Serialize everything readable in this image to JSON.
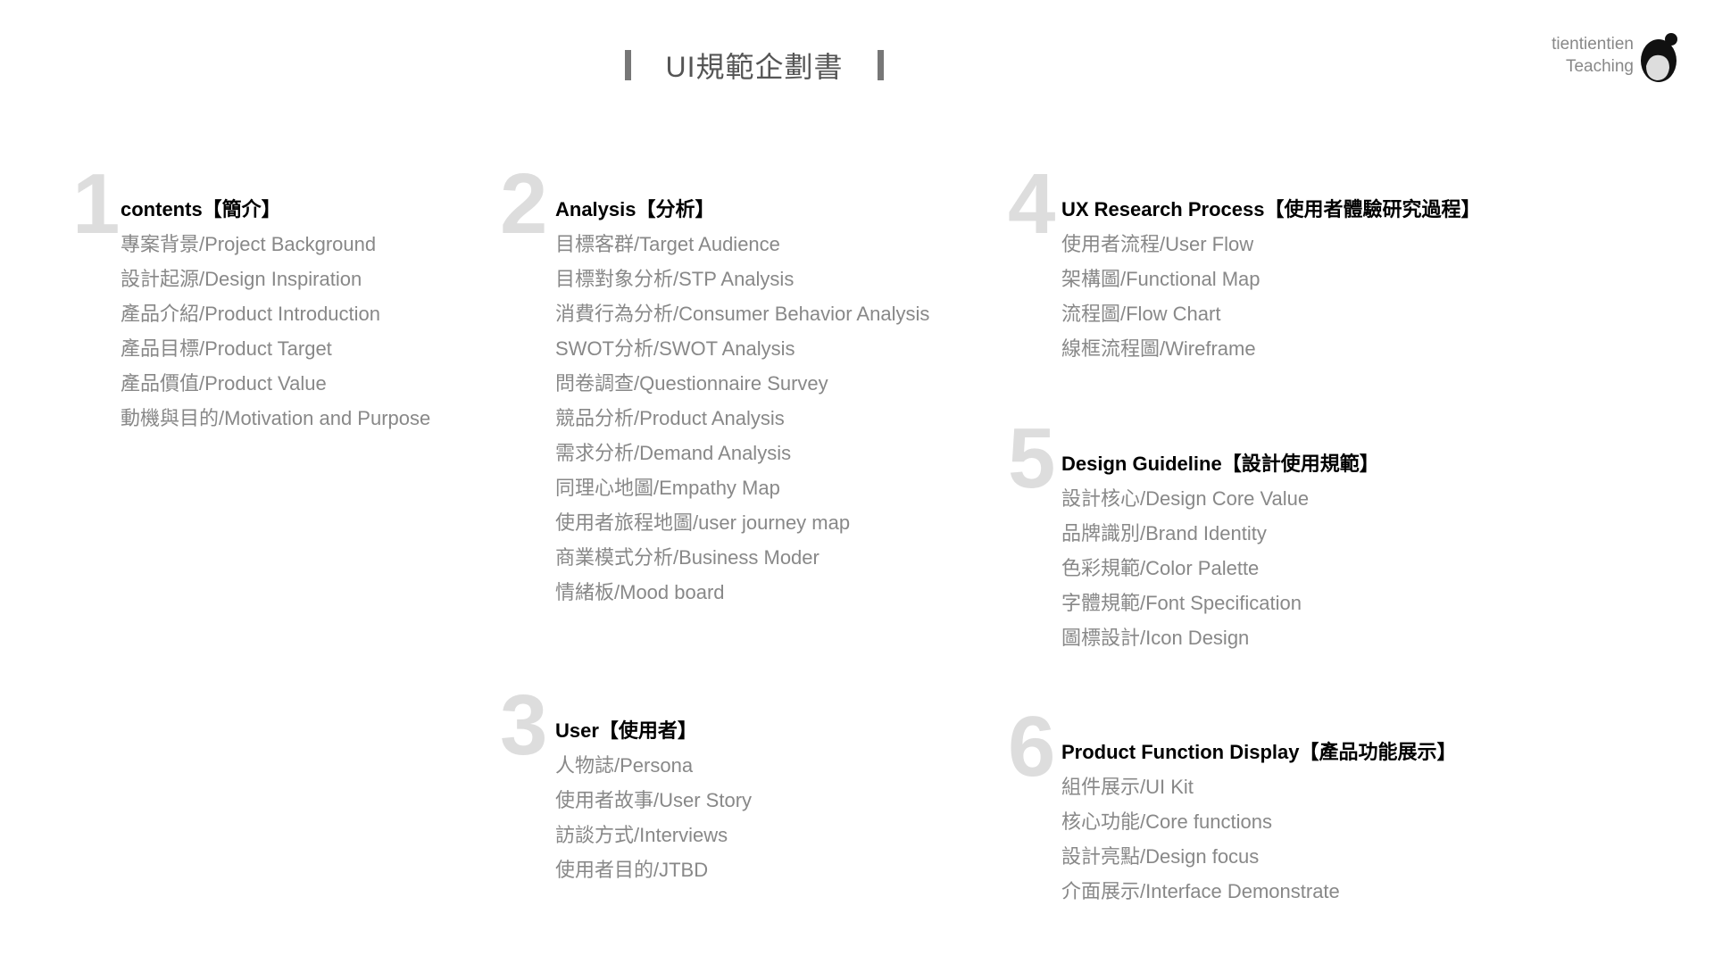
{
  "title": "UI規範企劃書",
  "logo": {
    "line1": "tientientien",
    "line2": "Teaching"
  },
  "sections": [
    {
      "num": "1",
      "heading": "contents【簡介】",
      "items": [
        "專案背景/Project Background",
        "設計起源/Design Inspiration",
        "產品介紹/Product Introduction",
        "產品目標/Product Target",
        "產品價值/Product Value",
        "動機與目的/Motivation and Purpose"
      ]
    },
    {
      "num": "2",
      "heading": "Analysis【分析】",
      "items": [
        "目標客群/Target Audience",
        "目標對象分析/STP Analysis",
        "消費行為分析/Consumer Behavior Analysis",
        "SWOT分析/SWOT Analysis",
        "問卷調查/Questionnaire Survey",
        "競品分析/Product Analysis",
        "需求分析/Demand Analysis",
        "同理心地圖/Empathy Map",
        "使用者旅程地圖/user journey map",
        "商業模式分析/Business Moder",
        "情緒板/Mood board"
      ]
    },
    {
      "num": "3",
      "heading": "User【使用者】",
      "items": [
        "人物誌/Persona",
        "使用者故事/User Story",
        "訪談方式/Interviews",
        "使用者目的/JTBD"
      ]
    },
    {
      "num": "4",
      "heading": "UX Research Process【使用者體驗研究過程】",
      "items": [
        "使用者流程/User Flow",
        "架構圖/Functional Map",
        "流程圖/Flow Chart",
        "線框流程圖/Wireframe"
      ]
    },
    {
      "num": "5",
      "heading": "Design Guideline【設計使用規範】",
      "items": [
        "設計核心/Design Core Value",
        "品牌識別/Brand Identity",
        "色彩規範/Color Palette",
        "字體規範/Font Specification",
        "圖標設計/Icon Design"
      ]
    },
    {
      "num": "6",
      "heading": "Product Function Display【產品功能展示】",
      "items": [
        "組件展示/UI Kit",
        "核心功能/Core functions",
        "設計亮點/Design focus",
        "介面展示/Interface Demonstrate"
      ]
    }
  ]
}
